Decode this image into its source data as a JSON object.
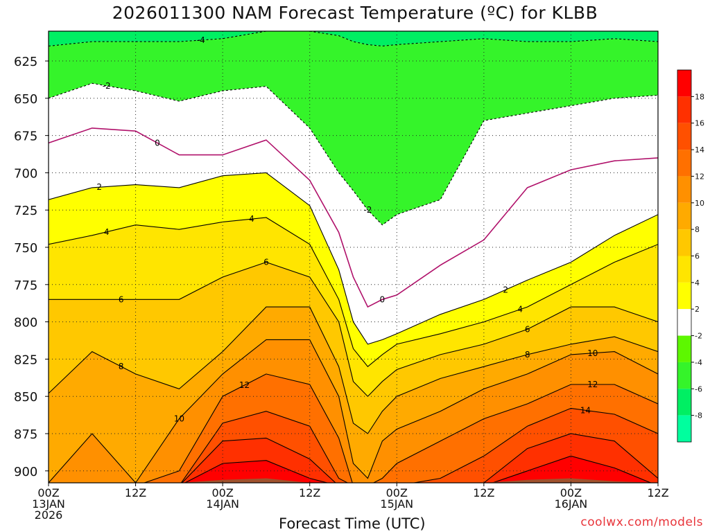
{
  "title": "2026011300 NAM Forecast Temperature (ºC) for KLBB",
  "xlabel": "Forecast Time (UTC)",
  "footer": "coolwx.com/models",
  "chart_data": {
    "type": "contour",
    "variable": "Temperature (°C)",
    "y_axis": {
      "label": "",
      "ticks": [
        "625",
        "650",
        "675",
        "700",
        "725",
        "750",
        "775",
        "800",
        "825",
        "850",
        "875",
        "900"
      ],
      "ylim": [
        908,
        605
      ],
      "gridlines": true
    },
    "x_axis": {
      "ticks": [
        {
          "line1": "00Z",
          "line2": "13JAN",
          "line3": "2026"
        },
        {
          "line1": "12Z",
          "line2": "",
          "line3": ""
        },
        {
          "line1": "00Z",
          "line2": "14JAN",
          "line3": ""
        },
        {
          "line1": "12Z",
          "line2": "",
          "line3": ""
        },
        {
          "line1": "00Z",
          "line2": "15JAN",
          "line3": ""
        },
        {
          "line1": "12Z",
          "line2": "",
          "line3": ""
        },
        {
          "line1": "00Z",
          "line2": "16JAN",
          "line3": ""
        },
        {
          "line1": "12Z",
          "line2": "",
          "line3": ""
        }
      ],
      "hours": [
        0,
        12,
        24,
        36,
        48,
        60,
        72,
        84
      ],
      "xlim": [
        0,
        84
      ],
      "gridlines": true
    },
    "contour_interval": 2,
    "contour_labels": [
      "-4",
      "-2",
      "0",
      "2",
      "4",
      "6",
      "8",
      "10",
      "12",
      "14"
    ],
    "colorbar": {
      "levels": [
        "-8",
        "-6",
        "-4",
        "-2",
        "2",
        "4",
        "6",
        "8",
        "10",
        "12",
        "14",
        "16",
        "18"
      ],
      "colors": [
        "#00ff9e",
        "#00ef63",
        "#35f42a",
        "#5df700",
        "#ffffff",
        "#ffff00",
        "#ffe500",
        "#ffc800",
        "#ffaa00",
        "#ff9000",
        "#ff7000",
        "#ff5000",
        "#ff3000",
        "#ff0000"
      ]
    },
    "terrain_color": "#a0522d",
    "profiles": {
      "hours": [
        0,
        6,
        12,
        18,
        24,
        30,
        36,
        40,
        42,
        44,
        46,
        48,
        54,
        60,
        66,
        72,
        78,
        84
      ],
      "p_m4": [
        615,
        612,
        612,
        612,
        610,
        605,
        605,
        608,
        612,
        614,
        615,
        614,
        612,
        610,
        612,
        612,
        610,
        612
      ],
      "p_m2": [
        650,
        640,
        645,
        652,
        645,
        642,
        670,
        700,
        712,
        725,
        735,
        728,
        718,
        665,
        660,
        655,
        650,
        648
      ],
      "p_0": [
        680,
        670,
        672,
        688,
        688,
        678,
        705,
        740,
        770,
        790,
        785,
        782,
        762,
        745,
        710,
        698,
        692,
        690
      ],
      "p_2": [
        718,
        710,
        708,
        710,
        702,
        700,
        722,
        765,
        800,
        815,
        812,
        808,
        795,
        785,
        772,
        760,
        742,
        728
      ],
      "p_4": [
        748,
        742,
        735,
        738,
        733,
        730,
        748,
        785,
        818,
        830,
        822,
        815,
        808,
        800,
        790,
        775,
        760,
        748
      ],
      "p_6": [
        785,
        785,
        785,
        785,
        770,
        760,
        770,
        800,
        840,
        850,
        840,
        832,
        822,
        815,
        805,
        790,
        790,
        800
      ],
      "p_8": [
        848,
        820,
        835,
        845,
        820,
        790,
        790,
        830,
        868,
        875,
        860,
        850,
        838,
        830,
        822,
        815,
        810,
        820
      ],
      "p_10": [
        908,
        875,
        908,
        865,
        835,
        812,
        812,
        850,
        895,
        905,
        880,
        872,
        860,
        845,
        835,
        822,
        820,
        835
      ],
      "p_12": [
        910,
        910,
        910,
        900,
        850,
        835,
        842,
        878,
        910,
        910,
        905,
        895,
        880,
        865,
        855,
        842,
        842,
        855
      ],
      "p_14": [
        910,
        910,
        910,
        910,
        868,
        860,
        870,
        905,
        910,
        910,
        910,
        910,
        905,
        890,
        870,
        858,
        862,
        875
      ],
      "p_16": [
        910,
        910,
        910,
        910,
        880,
        878,
        892,
        910,
        910,
        910,
        910,
        910,
        910,
        908,
        885,
        875,
        880,
        905
      ],
      "p_18": [
        910,
        910,
        910,
        910,
        895,
        893,
        905,
        910,
        910,
        910,
        910,
        910,
        910,
        910,
        900,
        890,
        898,
        910
      ],
      "p_sfc": [
        910,
        910,
        910,
        908,
        906,
        905,
        908,
        910,
        912,
        912,
        910,
        909,
        910,
        908,
        906,
        905,
        907,
        908
      ]
    }
  }
}
